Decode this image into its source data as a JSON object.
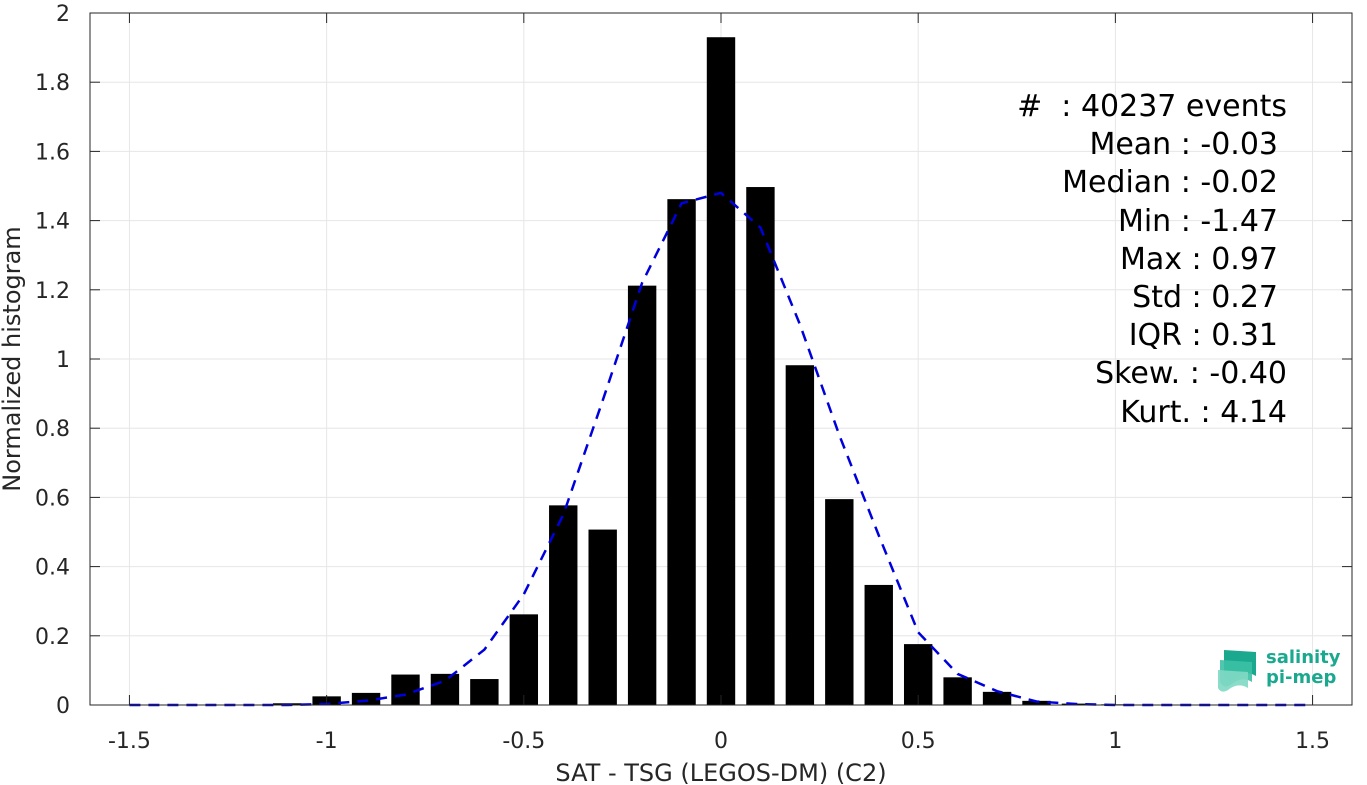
{
  "chart_data": {
    "type": "bar",
    "xlabel": "SAT - TSG (LEGOS-DM) (C2)",
    "ylabel": "Normalized histogram",
    "xlim": [
      -1.6,
      1.6
    ],
    "ylim": [
      0,
      2
    ],
    "grid": true,
    "x_ticks": [
      "-1.5",
      "-1",
      "-0.5",
      "0",
      "0.5",
      "1",
      "1.5"
    ],
    "x_tick_values": [
      -1.5,
      -1,
      -0.5,
      0,
      0.5,
      1,
      1.5
    ],
    "y_ticks": [
      "0",
      "0.2",
      "0.4",
      "0.6",
      "0.8",
      "1",
      "1.2",
      "1.4",
      "1.6",
      "1.8",
      "2"
    ],
    "y_tick_values": [
      0,
      0.2,
      0.4,
      0.6,
      0.8,
      1,
      1.2,
      1.4,
      1.6,
      1.8,
      2
    ],
    "bar_color": "#000000",
    "bars": [
      {
        "x": -1.1,
        "y": 0.005
      },
      {
        "x": -1.0,
        "y": 0.025
      },
      {
        "x": -0.9,
        "y": 0.035
      },
      {
        "x": -0.8,
        "y": 0.088
      },
      {
        "x": -0.7,
        "y": 0.09
      },
      {
        "x": -0.6,
        "y": 0.075
      },
      {
        "x": -0.5,
        "y": 0.262
      },
      {
        "x": -0.4,
        "y": 0.577
      },
      {
        "x": -0.3,
        "y": 0.507
      },
      {
        "x": -0.2,
        "y": 1.212
      },
      {
        "x": -0.1,
        "y": 1.462
      },
      {
        "x": 0.0,
        "y": 1.93
      },
      {
        "x": 0.1,
        "y": 1.497
      },
      {
        "x": 0.2,
        "y": 0.982
      },
      {
        "x": 0.3,
        "y": 0.595
      },
      {
        "x": 0.4,
        "y": 0.347
      },
      {
        "x": 0.5,
        "y": 0.176
      },
      {
        "x": 0.6,
        "y": 0.08
      },
      {
        "x": 0.7,
        "y": 0.038
      },
      {
        "x": 0.8,
        "y": 0.012
      },
      {
        "x": 0.9,
        "y": 0.004
      },
      {
        "x": 1.0,
        "y": 0.002
      }
    ],
    "fit_curve": {
      "style": "dashed",
      "color": "#0000dd",
      "x": [
        -1.5,
        -1.4,
        -1.3,
        -1.2,
        -1.1,
        -1.0,
        -0.9,
        -0.8,
        -0.7,
        -0.6,
        -0.5,
        -0.4,
        -0.3,
        -0.2,
        -0.1,
        0.0,
        0.1,
        0.2,
        0.3,
        0.4,
        0.5,
        0.6,
        0.7,
        0.8,
        0.9,
        1.0,
        1.1,
        1.2,
        1.3,
        1.4,
        1.5
      ],
      "y": [
        0,
        0,
        0,
        0,
        0,
        0.003,
        0.012,
        0.03,
        0.07,
        0.16,
        0.32,
        0.55,
        0.88,
        1.22,
        1.45,
        1.48,
        1.38,
        1.1,
        0.78,
        0.49,
        0.21,
        0.09,
        0.04,
        0.01,
        0.003,
        0,
        0,
        0,
        0,
        0,
        0
      ]
    }
  },
  "stats": [
    "#  : 40237 events",
    "Mean : -0.03",
    "Median : -0.02",
    "Min : -1.47",
    "Max : 0.97",
    "Std : 0.27",
    "IQR : 0.31",
    "Skew. : -0.40",
    "Kurt. : 4.14"
  ],
  "logo": {
    "line1": "salinity",
    "line2": "pi-mep",
    "icon": "wave-stack-icon",
    "color": "#1aa88e"
  }
}
